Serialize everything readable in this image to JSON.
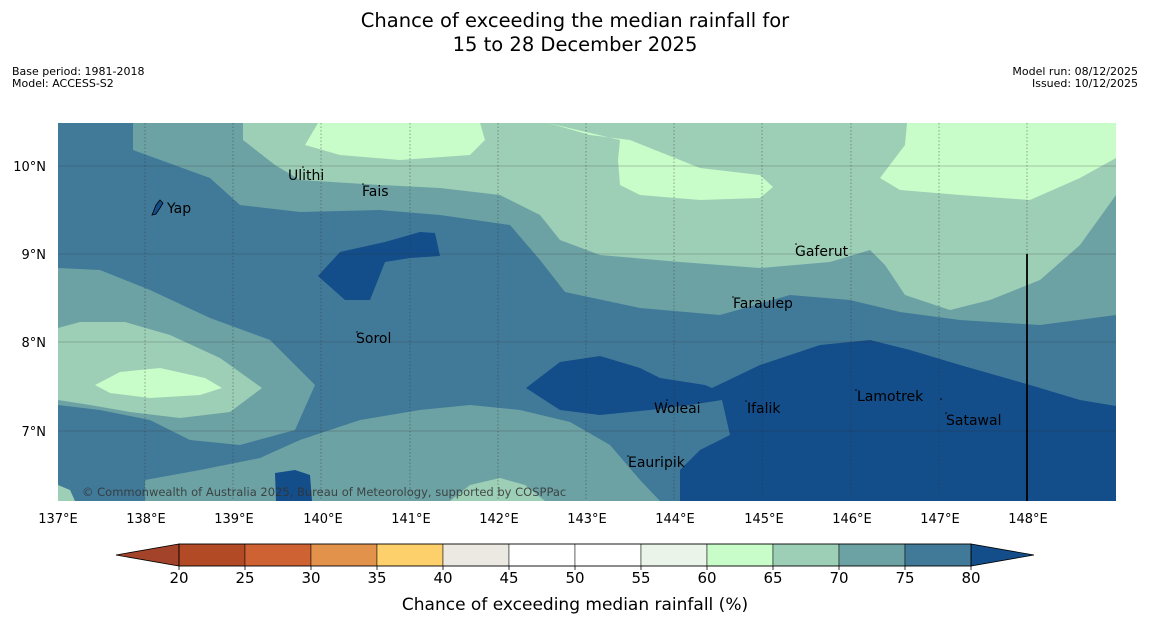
{
  "title": {
    "line1": "Chance of exceeding the median rainfall for",
    "line2": "15 to 28 December 2025"
  },
  "meta": {
    "base_period": "Base period: 1981-2018",
    "model": "Model: ACCESS-S2",
    "model_run": "Model run: 08/12/2025",
    "issued": "Issued: 10/12/2025"
  },
  "map": {
    "lon_labels": [
      "137°E",
      "138°E",
      "139°E",
      "140°E",
      "141°E",
      "142°E",
      "143°E",
      "144°E",
      "145°E",
      "146°E",
      "147°E",
      "148°E"
    ],
    "lat_labels": [
      "10°N",
      "9°N",
      "8°N",
      "7°N"
    ],
    "places": [
      "Ulithi",
      "Fais",
      "Yap",
      "Gaferut",
      "Faraulep",
      "Sorol",
      "Woleai",
      "Ifalik",
      "Lamotrek",
      "Satawal",
      "Eauripik"
    ],
    "copyright": "© Commonwealth of Australia 2025, Bureau of Meteorology, supported by COSPPac"
  },
  "colorbar": {
    "ticks": [
      "20",
      "25",
      "30",
      "35",
      "40",
      "45",
      "50",
      "55",
      "60",
      "65",
      "70",
      "75",
      "80"
    ],
    "colors": [
      "#b34a26",
      "#cf6232",
      "#e2924b",
      "#fdd06b",
      "#ece9e3",
      "#ffffff",
      "#ffffff",
      "#eaf4e8",
      "#c8fcc8",
      "#9dcfb6",
      "#6da2a4",
      "#417a99",
      "#134d8a"
    ],
    "below_color": "#a3432a",
    "above_color": "#134d8a",
    "label": "Chance of exceeding median rainfall (%)"
  }
}
